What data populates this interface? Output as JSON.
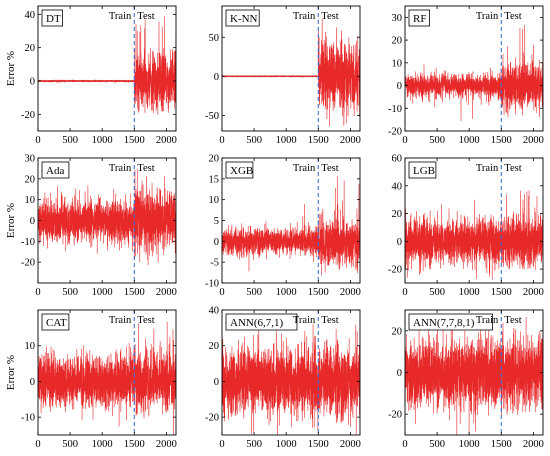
{
  "figure": {
    "description_free": true,
    "line_color": "#e8292a",
    "split_line_color": "#3a6fd8",
    "train_label": "Train",
    "test_label": "Test"
  },
  "chart_data": [
    {
      "type": "line",
      "title": "DT",
      "ylabel": "Error %",
      "xlim": [
        0,
        2150
      ],
      "ylim": [
        -30,
        45
      ],
      "xticks": [
        0,
        500,
        1000,
        1500,
        2000
      ],
      "xtick_labels": [
        "0",
        "500",
        "1000",
        "1500",
        "2000"
      ],
      "yticks": [
        -20,
        0,
        20,
        40
      ],
      "ytick_labels": [
        "-20",
        "0",
        "20",
        "40"
      ],
      "split_x": 1500,
      "n_points": 2150,
      "train_amplitude": 0.3,
      "test_amplitude": 8,
      "test_peak": 40,
      "test_trough": -16,
      "flat_train_line": true
    },
    {
      "type": "line",
      "title": "K-NN",
      "ylabel": "",
      "xlim": [
        0,
        2150
      ],
      "ylim": [
        -70,
        90
      ],
      "xticks": [
        0,
        500,
        1000,
        1500,
        2000
      ],
      "xtick_labels": [
        "0",
        "500",
        "1000",
        "1500",
        "2000"
      ],
      "yticks": [
        -50,
        0,
        50
      ],
      "ytick_labels": [
        "-50",
        "0",
        "50"
      ],
      "split_x": 1500,
      "n_points": 2150,
      "train_amplitude": 0.3,
      "test_amplitude": 22,
      "test_peak": 85,
      "test_trough": -55,
      "flat_train_line": true
    },
    {
      "type": "line",
      "title": "RF",
      "ylabel": "",
      "xlim": [
        0,
        2150
      ],
      "ylim": [
        -20,
        35
      ],
      "xticks": [
        0,
        500,
        1000,
        1500,
        2000
      ],
      "xtick_labels": [
        "0",
        "500",
        "1000",
        "1500",
        "2000"
      ],
      "yticks": [
        -20,
        -10,
        0,
        10,
        20,
        30
      ],
      "ytick_labels": [
        "-20",
        "-10",
        "0",
        "10",
        "20",
        "30"
      ],
      "split_x": 1500,
      "n_points": 2150,
      "train_amplitude": 2.5,
      "test_amplitude": 5,
      "test_peak": 28,
      "test_trough": -14,
      "flat_train_line": false
    },
    {
      "type": "line",
      "title": "Ada",
      "ylabel": "Error %",
      "xlim": [
        0,
        2150
      ],
      "ylim": [
        -30,
        30
      ],
      "xticks": [
        0,
        500,
        1000,
        1500,
        2000
      ],
      "xtick_labels": [
        "0",
        "500",
        "1000",
        "1500",
        "2000"
      ],
      "yticks": [
        -20,
        -10,
        0,
        10,
        20,
        30
      ],
      "ytick_labels": [
        "-20",
        "-10",
        "0",
        "10",
        "20",
        "30"
      ],
      "split_x": 1500,
      "n_points": 2150,
      "train_amplitude": 5,
      "test_amplitude": 7,
      "test_peak": 25,
      "test_trough": -20,
      "flat_train_line": false
    },
    {
      "type": "line",
      "title": "XGB",
      "ylabel": "",
      "xlim": [
        0,
        2150
      ],
      "ylim": [
        -10,
        20
      ],
      "xticks": [
        0,
        500,
        1000,
        1500,
        2000
      ],
      "xtick_labels": [
        "0",
        "500",
        "1000",
        "1500",
        "2000"
      ],
      "yticks": [
        -10,
        -5,
        0,
        5,
        10,
        15,
        20
      ],
      "ytick_labels": [
        "-10",
        "-5",
        "0",
        "5",
        "10",
        "15",
        "20"
      ],
      "split_x": 1500,
      "n_points": 2150,
      "train_amplitude": 1.5,
      "test_amplitude": 2.5,
      "test_peak": 16,
      "test_trough": -7,
      "flat_train_line": false
    },
    {
      "type": "line",
      "title": "LGB",
      "ylabel": "",
      "xlim": [
        0,
        2150
      ],
      "ylim": [
        -30,
        60
      ],
      "xticks": [
        0,
        500,
        1000,
        1500,
        2000
      ],
      "xtick_labels": [
        "0",
        "500",
        "1000",
        "1500",
        "2000"
      ],
      "yticks": [
        -20,
        0,
        20,
        40,
        60
      ],
      "ytick_labels": [
        "-20",
        "0",
        "20",
        "40",
        "60"
      ],
      "split_x": 1500,
      "n_points": 2150,
      "train_amplitude": 8,
      "test_amplitude": 9,
      "test_peak": 42,
      "test_trough": -22,
      "flat_train_line": false
    },
    {
      "type": "line",
      "title": "CAT",
      "ylabel": "Error %",
      "xlim": [
        0,
        2150
      ],
      "ylim": [
        -15,
        20
      ],
      "xticks": [
        0,
        500,
        1000,
        1500,
        2000
      ],
      "xtick_labels": [
        "0",
        "500",
        "1000",
        "1500",
        "2000"
      ],
      "yticks": [
        -10,
        0,
        10
      ],
      "ytick_labels": [
        "-10",
        "0",
        "10"
      ],
      "split_x": 1500,
      "n_points": 2150,
      "train_amplitude": 3.5,
      "test_amplitude": 4,
      "test_peak": 17,
      "test_trough": -11,
      "flat_train_line": false
    },
    {
      "type": "line",
      "title": "ANN(6,7,1)",
      "ylabel": "",
      "xlim": [
        0,
        2150
      ],
      "ylim": [
        -30,
        40
      ],
      "xticks": [
        0,
        500,
        1000,
        1500,
        2000
      ],
      "xtick_labels": [
        "0",
        "500",
        "1000",
        "1500",
        "2000"
      ],
      "yticks": [
        -20,
        0,
        20,
        40
      ],
      "ytick_labels": [
        "-20",
        "0",
        "20",
        "40"
      ],
      "split_x": 1500,
      "n_points": 2150,
      "train_amplitude": 9,
      "test_amplitude": 9,
      "test_peak": 32,
      "test_trough": -25,
      "flat_train_line": false
    },
    {
      "type": "line",
      "title": "ANN(7,7,8,1)",
      "ylabel": "",
      "xlim": [
        0,
        2150
      ],
      "ylim": [
        -30,
        30
      ],
      "xticks": [
        0,
        500,
        1000,
        1500,
        2000
      ],
      "xtick_labels": [
        "0",
        "500",
        "1000",
        "1500",
        "2000"
      ],
      "yticks": [
        -20,
        0,
        20
      ],
      "ytick_labels": [
        "-20",
        "0",
        "20"
      ],
      "split_x": 1500,
      "n_points": 2150,
      "train_amplitude": 8,
      "test_amplitude": 8,
      "test_peak": 26,
      "test_trough": -22,
      "flat_train_line": false
    }
  ]
}
